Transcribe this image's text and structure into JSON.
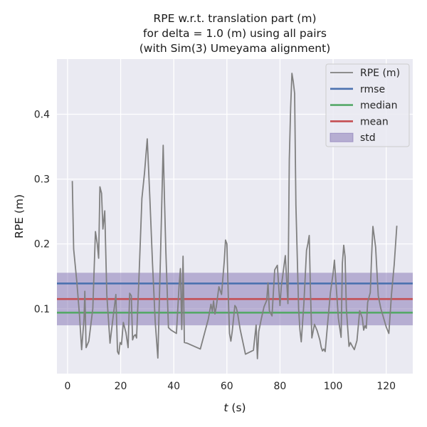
{
  "chart_data": {
    "type": "line",
    "title": [
      "RPE w.r.t. translation part (m)",
      "for delta = 1.0 (m) using all pairs",
      "(with Sim(3) Umeyama alignment)"
    ],
    "xlabel_symbol": "t",
    "xlabel_unit": " (s)",
    "ylabel": "RPE (m)",
    "xlim": [
      -4,
      130
    ],
    "ylim": [
      0.0,
      0.485
    ],
    "xticks": [
      0,
      20,
      40,
      60,
      80,
      100,
      120
    ],
    "yticks": [
      0.1,
      0.2,
      0.3,
      0.4
    ],
    "ytick_labels": [
      "0.1",
      "0.2",
      "0.3",
      "0.4"
    ],
    "grid": true,
    "legend_position": "top-right",
    "colors": {
      "background": "#EAEAF2",
      "grid": "#FFFFFF",
      "rpe": "#808080",
      "rmse": "#4C72B0",
      "median": "#55A868",
      "mean": "#C44E52",
      "std": "#8172B2"
    },
    "stats": {
      "rmse": 0.139,
      "median": 0.094,
      "mean": 0.115,
      "std": 0.0405
    },
    "legend": [
      {
        "key": "rpe",
        "label": "RPE (m)",
        "kind": "line"
      },
      {
        "key": "rmse",
        "label": "rmse",
        "kind": "line"
      },
      {
        "key": "median",
        "label": "median",
        "kind": "line"
      },
      {
        "key": "mean",
        "label": "mean",
        "kind": "line"
      },
      {
        "key": "std",
        "label": "std",
        "kind": "patch"
      }
    ],
    "series": [
      {
        "name": "RPE (m)",
        "x": [
          1.8,
          2.3,
          3.5,
          4.5,
          5.3,
          6.2,
          6.5,
          7.0,
          8.0,
          9.5,
          10.5,
          11.2,
          11.7,
          12.2,
          12.8,
          13.3,
          14.0,
          14.8,
          16.0,
          16.8,
          17.4,
          17.8,
          18.2,
          18.8,
          19.3,
          19.8,
          20.3,
          21.0,
          22.0,
          22.8,
          23.4,
          24.0,
          24.5,
          25.0,
          25.5,
          26.0,
          27.0,
          28.0,
          29.0,
          30.0,
          31.0,
          32.0,
          33.0,
          34.0,
          35.0,
          36.0,
          36.5,
          37.0,
          38.0,
          39.0,
          41.0,
          42.0,
          42.5,
          43.0,
          43.5,
          44.0,
          45.0,
          50.0,
          53.0,
          54.0,
          54.5,
          55.0,
          55.5,
          56.0,
          57.0,
          58.0,
          59.0,
          59.5,
          60.0,
          60.5,
          61.0,
          61.5,
          62.0,
          63.0,
          63.5,
          64.0,
          65.0,
          67.0,
          70.0,
          71.0,
          71.5,
          72.0,
          73.0,
          74.0,
          75.0,
          75.5,
          76.0,
          77.0,
          78.0,
          79.0,
          80.0,
          80.5,
          81.0,
          82.0,
          83.0,
          83.5,
          84.0,
          84.5,
          85.0,
          85.5,
          86.0,
          87.0,
          87.5,
          88.0,
          89.0,
          90.0,
          90.5,
          91.0,
          91.5,
          92.0,
          93.0,
          94.0,
          95.0,
          95.5,
          96.0,
          96.5,
          97.0,
          98.0,
          99.0,
          100.0,
          100.5,
          101.0,
          102.0,
          103.0,
          103.5,
          104.0,
          104.5,
          105.0,
          106.0,
          106.5,
          107.0,
          108.0,
          109.0,
          110.0,
          111.0,
          111.5,
          112.0,
          112.5,
          113.0,
          114.0,
          114.5,
          115.0,
          116.0,
          117.0,
          118.0,
          120.0,
          121.0,
          122.0,
          123.0,
          124.0
        ],
        "values": [
          0.297,
          0.192,
          0.141,
          0.09,
          0.037,
          0.085,
          0.127,
          0.04,
          0.05,
          0.1,
          0.219,
          0.2,
          0.178,
          0.288,
          0.278,
          0.223,
          0.251,
          0.121,
          0.047,
          0.075,
          0.096,
          0.108,
          0.122,
          0.034,
          0.03,
          0.048,
          0.045,
          0.079,
          0.063,
          0.04,
          0.124,
          0.12,
          0.052,
          0.058,
          0.06,
          0.055,
          0.16,
          0.27,
          0.31,
          0.362,
          0.27,
          0.17,
          0.08,
          0.024,
          0.18,
          0.352,
          0.27,
          0.19,
          0.071,
          0.067,
          0.062,
          0.135,
          0.162,
          0.068,
          0.181,
          0.048,
          0.047,
          0.038,
          0.084,
          0.107,
          0.096,
          0.112,
          0.092,
          0.103,
          0.134,
          0.122,
          0.173,
          0.206,
          0.2,
          0.122,
          0.062,
          0.05,
          0.065,
          0.105,
          0.102,
          0.094,
          0.068,
          0.03,
          0.036,
          0.075,
          0.023,
          0.065,
          0.085,
          0.103,
          0.113,
          0.14,
          0.097,
          0.089,
          0.16,
          0.167,
          0.105,
          0.135,
          0.15,
          0.182,
          0.108,
          0.33,
          0.41,
          0.463,
          0.45,
          0.432,
          0.26,
          0.1,
          0.068,
          0.049,
          0.108,
          0.19,
          0.2,
          0.213,
          0.125,
          0.055,
          0.076,
          0.066,
          0.052,
          0.041,
          0.035,
          0.038,
          0.034,
          0.08,
          0.125,
          0.155,
          0.175,
          0.145,
          0.085,
          0.056,
          0.17,
          0.198,
          0.18,
          0.1,
          0.042,
          0.048,
          0.044,
          0.037,
          0.051,
          0.097,
          0.086,
          0.067,
          0.074,
          0.07,
          0.11,
          0.125,
          0.182,
          0.227,
          0.195,
          0.12,
          0.1,
          0.072,
          0.062,
          0.122,
          0.168,
          0.228
        ]
      }
    ]
  }
}
